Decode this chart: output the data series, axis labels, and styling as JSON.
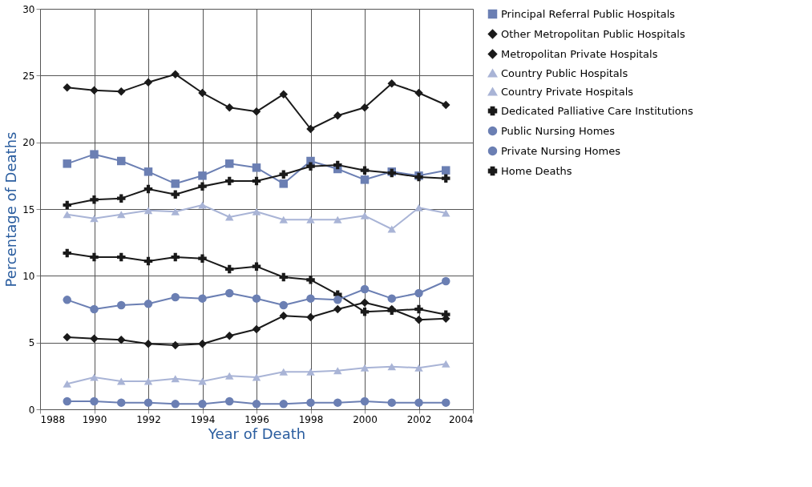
{
  "chart_data": {
    "type": "line",
    "xlabel": "Year of Death",
    "ylabel": "Percentage of Deaths",
    "x": [
      1989,
      1990,
      1991,
      1992,
      1993,
      1994,
      1995,
      1996,
      1997,
      1998,
      1999,
      2000,
      2001,
      2002,
      2003
    ],
    "series": [
      {
        "name": "Principal Referral Public Hospitals",
        "color": "#6b7fb3",
        "marker": "square",
        "values": [
          18.4,
          19.1,
          18.6,
          17.8,
          16.9,
          17.5,
          18.4,
          18.1,
          16.9,
          18.6,
          18.0,
          17.2,
          17.8,
          17.5,
          17.9
        ]
      },
      {
        "name": "Other Metropolitan Public Hospitals",
        "color": "#1a1a1a",
        "marker": "diamond",
        "values": [
          24.1,
          23.9,
          23.8,
          24.5,
          25.1,
          23.7,
          22.6,
          22.3,
          23.6,
          21.0,
          22.0,
          22.6,
          24.4,
          23.7,
          22.8
        ]
      },
      {
        "name": "Metropolitan Private Hospitals",
        "color": "#1a1a1a",
        "marker": "diamond",
        "values": [
          5.4,
          5.3,
          5.2,
          4.9,
          4.8,
          4.9,
          5.5,
          6.0,
          7.0,
          6.9,
          7.5,
          8.0,
          7.5,
          6.7,
          6.8
        ]
      },
      {
        "name": "Country Public Hospitals",
        "color": "#a9b4d6",
        "marker": "triangle",
        "values": [
          14.6,
          14.3,
          14.6,
          14.9,
          14.8,
          15.3,
          14.4,
          14.8,
          14.2,
          14.2,
          14.2,
          14.5,
          13.5,
          15.1,
          14.7
        ]
      },
      {
        "name": "Country Private Hospitals",
        "color": "#a9b4d6",
        "marker": "triangle",
        "values": [
          1.9,
          2.4,
          2.1,
          2.1,
          2.3,
          2.1,
          2.5,
          2.4,
          2.8,
          2.8,
          2.9,
          3.1,
          3.2,
          3.1,
          3.4
        ]
      },
      {
        "name": "Dedicated Palliative Care Institutions",
        "color": "#1a1a1a",
        "marker": "cross",
        "values": [
          11.7,
          11.4,
          11.4,
          11.1,
          11.4,
          11.3,
          10.5,
          10.7,
          9.9,
          9.7,
          8.6,
          7.3,
          7.4,
          7.5,
          7.1
        ]
      },
      {
        "name": "Public Nursing Homes",
        "color": "#6b7fb3",
        "marker": "circle",
        "values": [
          0.6,
          0.6,
          0.5,
          0.5,
          0.4,
          0.4,
          0.6,
          0.4,
          0.4,
          0.5,
          0.5,
          0.6,
          0.5,
          0.5,
          0.5
        ]
      },
      {
        "name": "Private Nursing Homes",
        "color": "#6b7fb3",
        "marker": "circle",
        "values": [
          8.2,
          7.5,
          7.8,
          7.9,
          8.4,
          8.3,
          8.7,
          8.3,
          7.8,
          8.3,
          8.2,
          9.0,
          8.3,
          8.7,
          9.6
        ]
      },
      {
        "name": "Home Deaths",
        "color": "#1a1a1a",
        "marker": "cross",
        "values": [
          15.3,
          15.7,
          15.8,
          16.5,
          16.1,
          16.7,
          17.1,
          17.1,
          17.6,
          18.2,
          18.3,
          17.9,
          17.7,
          17.4,
          17.3
        ]
      }
    ],
    "xlim": [
      1988,
      2004
    ],
    "xticks": [
      1988,
      1990,
      1992,
      1994,
      1996,
      1998,
      2000,
      2002,
      2004
    ],
    "ylim": [
      0,
      30
    ],
    "yticks": [
      0,
      5,
      10,
      15,
      20,
      25,
      30
    ],
    "grid": true,
    "legend": "right",
    "line_style": "solid"
  }
}
